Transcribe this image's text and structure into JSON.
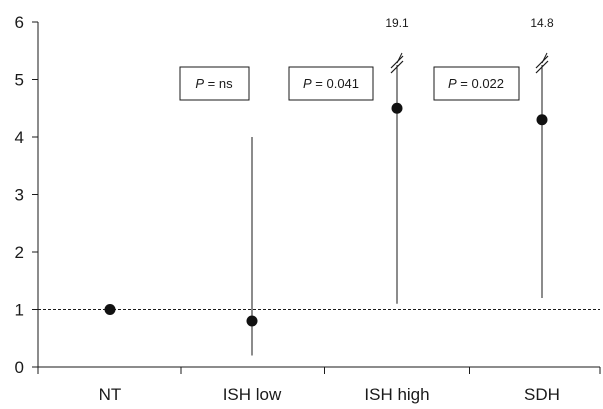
{
  "chart_data": {
    "type": "scatter",
    "title": "",
    "xlabel": "",
    "ylabel": "",
    "categories": [
      "NT",
      "ISH low",
      "ISH high",
      "SDH"
    ],
    "ylim": [
      0,
      6
    ],
    "yticks": [
      "0",
      "1",
      "2",
      "3",
      "4",
      "5",
      "6"
    ],
    "reference_line": {
      "y": 1,
      "style": "dashed"
    },
    "points": [
      {
        "category": "NT",
        "value": 1.0,
        "ci_low": null,
        "ci_high": null,
        "ci_high_label": ""
      },
      {
        "category": "ISH low",
        "value": 0.8,
        "ci_low": 0.2,
        "ci_high": 4.0,
        "ci_high_label": ""
      },
      {
        "category": "ISH high",
        "value": 4.5,
        "ci_low": 1.1,
        "ci_high": 19.1,
        "ci_high_label": "19.1"
      },
      {
        "category": "SDH",
        "value": 4.3,
        "ci_low": 1.2,
        "ci_high": 14.8,
        "ci_high_label": "14.8"
      }
    ],
    "p_values": [
      {
        "label": "P",
        "value": " = ns"
      },
      {
        "label": "P",
        "value": " = 0.041"
      },
      {
        "label": "P",
        "value": " = 0.022"
      }
    ],
    "grid": false,
    "legend": "none",
    "colors": {
      "axis": "#1a1a1a",
      "marker": "#111111"
    }
  }
}
